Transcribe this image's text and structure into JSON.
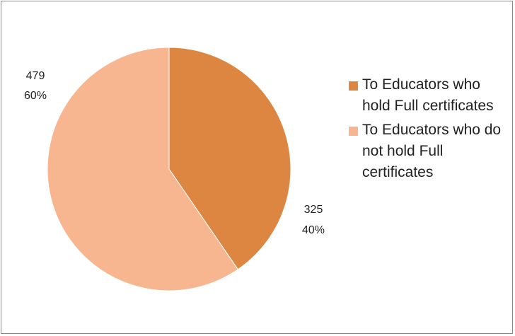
{
  "chart_data": {
    "type": "pie",
    "title": "",
    "slices": [
      {
        "label": "To Educators who hold Full certificates",
        "value": 325,
        "percent": "40%",
        "color": "#DD8641"
      },
      {
        "label": "To Educators who do not hold Full certificates",
        "value": 479,
        "percent": "60%",
        "color": "#F8B690"
      }
    ],
    "data_labels": [
      {
        "value": "325",
        "percent": "40%"
      },
      {
        "value": "479",
        "percent": "60%"
      }
    ],
    "legend_position": "right"
  }
}
